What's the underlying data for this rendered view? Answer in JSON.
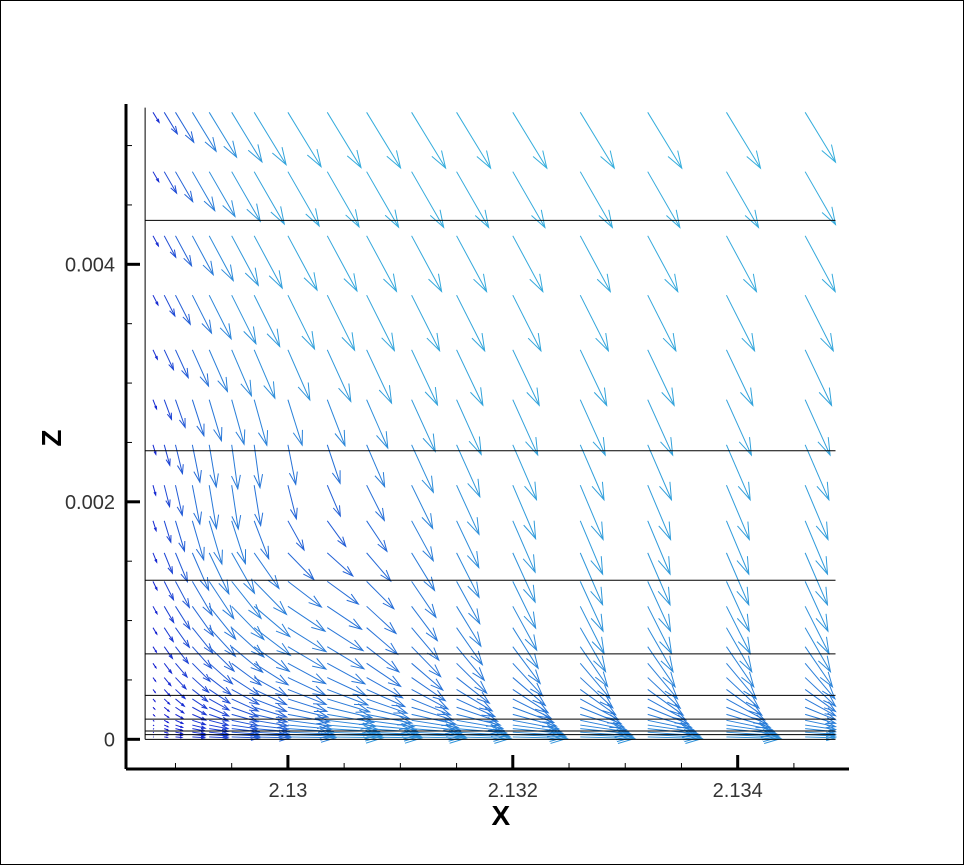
{
  "chart_data": {
    "type": "vector-field",
    "title": "",
    "xlabel": "X",
    "ylabel": "Z",
    "xlim": [
      2.12856,
      2.13499
    ],
    "ylim": [
      -0.00025,
      0.00535
    ],
    "xticks": [
      {
        "value": 2.13,
        "label": "2.13"
      },
      {
        "value": 2.132,
        "label": "2.132"
      },
      {
        "value": 2.134,
        "label": "2.134"
      }
    ],
    "yticks": [
      {
        "value": 0,
        "label": "0"
      },
      {
        "value": 0.002,
        "label": "0.002"
      },
      {
        "value": 0.004,
        "label": "0.004"
      }
    ],
    "x_minor_step": 0.0005,
    "y_minor_step": 0.0005,
    "horizontal_lines_z": [
      4e-05,
      7e-05,
      0.00017,
      0.00037,
      0.00072,
      0.00134,
      0.00243,
      0.00437
    ],
    "wall_x": 2.12873,
    "x_end": 2.13487,
    "z_top": 0.00532,
    "vector_columns_x": [
      2.12873,
      2.1288,
      2.1289,
      2.129,
      2.12915,
      2.1293,
      2.1295,
      2.1297,
      2.13,
      2.13035,
      2.1307,
      2.1311,
      2.1315,
      2.132,
      2.1326,
      2.1332,
      2.1339,
      2.1346
    ],
    "vector_rows_z": [
      2e-05,
      4e-05,
      6e-05,
      9e-05,
      0.00012,
      0.00016,
      0.00021,
      0.00027,
      0.00034,
      0.00042,
      0.00052,
      0.00064,
      0.00078,
      0.00094,
      0.00112,
      0.00133,
      0.00157,
      0.00184,
      0.00214,
      0.00248,
      0.00286,
      0.00328,
      0.00374,
      0.00424,
      0.00478,
      0.00528
    ],
    "vortex_center": {
      "x": 2.1297,
      "z": 0.0017
    },
    "color_slow": "#1010d0",
    "color_fast": "#40e0e0",
    "line_color": "#000000"
  }
}
